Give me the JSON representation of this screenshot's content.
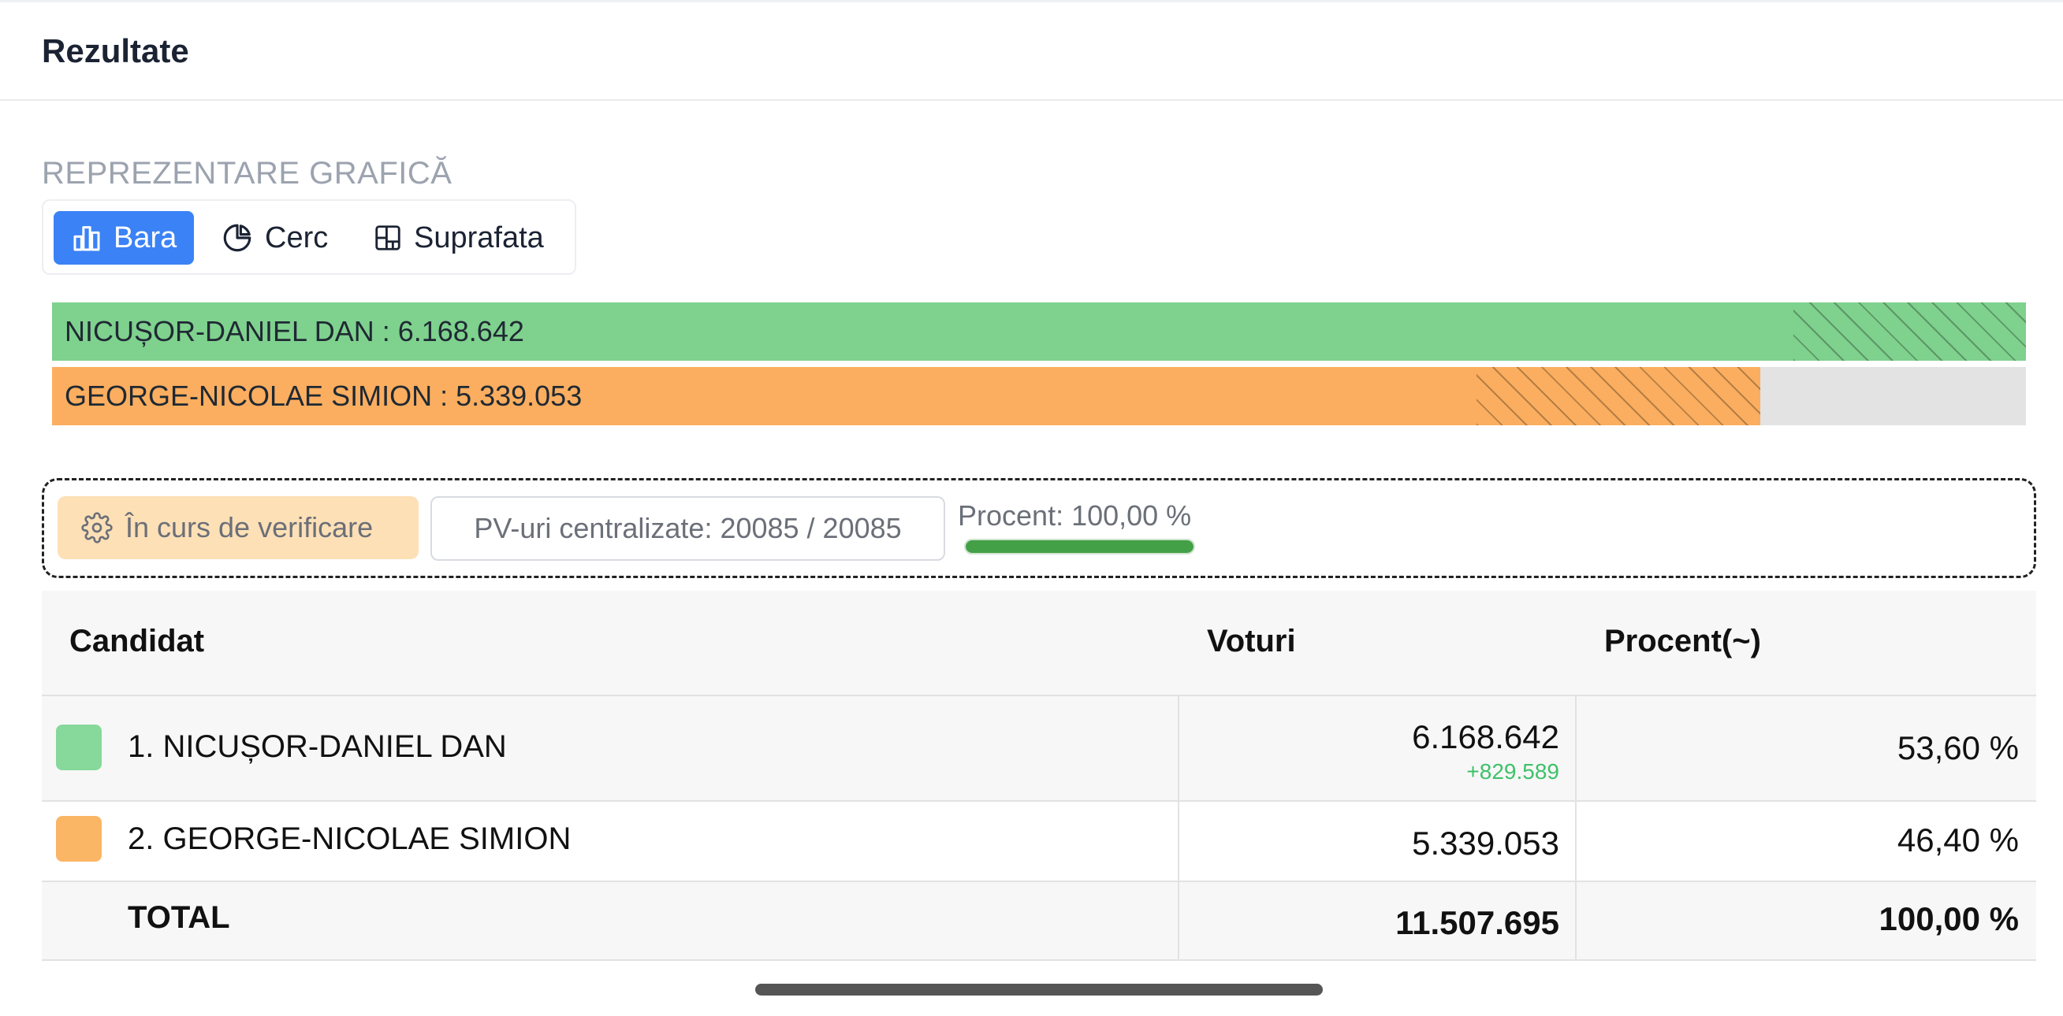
{
  "header": {
    "title": "Rezultate"
  },
  "graph_section": {
    "label": "REPREZENTARE GRAFICĂ",
    "tabs": [
      {
        "label": "Bara",
        "icon": "bar-chart-icon",
        "active": true
      },
      {
        "label": "Cerc",
        "icon": "pie-chart-icon",
        "active": false
      },
      {
        "label": "Suprafata",
        "icon": "treemap-icon",
        "active": false
      }
    ]
  },
  "chart_data": {
    "type": "bar",
    "orientation": "horizontal",
    "categories": [
      "NICUȘOR-DANIEL DAN",
      "GEORGE-NICOLAE SIMION"
    ],
    "values": [
      6168642,
      5339053
    ],
    "labels": [
      "NICUȘOR-DANIEL DAN : 6.168.642",
      "GEORGE-NICOLAE SIMION : 5.339.053"
    ],
    "colors": [
      "#7fd18e",
      "#fbae5f"
    ]
  },
  "status": {
    "verification": "În curs de verificare",
    "pv": "PV-uri centralizate: 20085 / 20085",
    "percent_label": "Procent: 100,00 %",
    "percent_value": 100
  },
  "table": {
    "headers": {
      "candidate": "Candidat",
      "votes": "Voturi",
      "percent": "Procent(~)"
    },
    "rows": [
      {
        "name": "1. NICUȘOR-DANIEL DAN",
        "votes": "6.168.642",
        "delta": "+829.589",
        "percent": "53,60 %",
        "color": "#86d99a"
      },
      {
        "name": "2. GEORGE-NICOLAE SIMION",
        "votes": "5.339.053",
        "delta": "",
        "percent": "46,40 %",
        "color": "#fbb665"
      }
    ],
    "total": {
      "label": "TOTAL",
      "votes": "11.507.695",
      "percent": "100,00 %"
    }
  }
}
